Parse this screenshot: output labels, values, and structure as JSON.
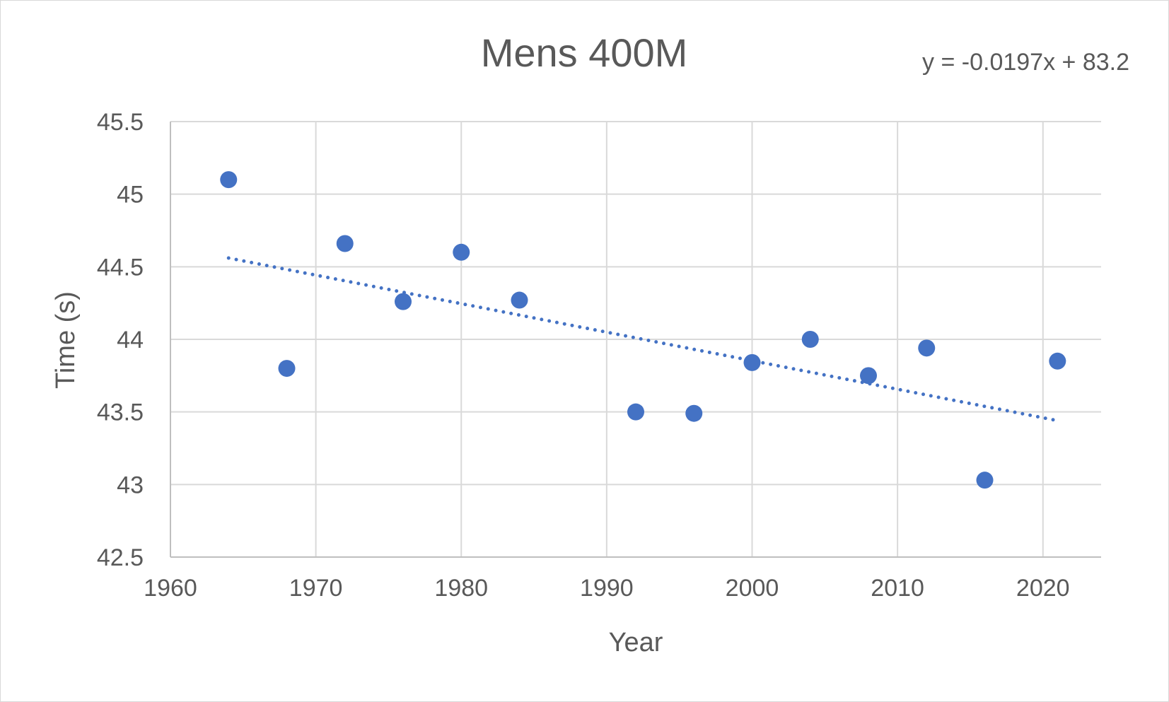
{
  "chart_data": {
    "type": "scatter",
    "title": "Mens 400M",
    "xlabel": "Year",
    "ylabel": "Time (s)",
    "xlim": [
      1960,
      2024
    ],
    "ylim": [
      42.5,
      45.5
    ],
    "x_ticks": [
      1960,
      1970,
      1980,
      1990,
      2000,
      2010,
      2020
    ],
    "y_ticks": [
      42.5,
      43,
      43.5,
      44,
      44.5,
      45,
      45.5
    ],
    "x_tick_labels": [
      "1960",
      "1970",
      "1980",
      "1990",
      "2000",
      "2010",
      "2020"
    ],
    "y_tick_labels": [
      "42.5",
      "43",
      "43.5",
      "44",
      "44.5",
      "45",
      "45.5"
    ],
    "grid": true,
    "legend": "none",
    "series": [
      {
        "x": [
          1964,
          1968,
          1972,
          1976,
          1980,
          1984,
          1992,
          1996,
          2000,
          2004,
          2008,
          2012,
          2016,
          2021
        ],
        "y": [
          45.1,
          43.8,
          44.66,
          44.26,
          44.6,
          44.27,
          43.5,
          43.49,
          43.84,
          44.0,
          43.75,
          43.94,
          43.03,
          43.85
        ],
        "color": "#4472c4"
      }
    ],
    "trendline": {
      "type": "linear",
      "style": "dotted",
      "color": "#4472c4",
      "equation": "y = -0.0197x + 83.2",
      "x_range": [
        1964,
        2021
      ],
      "y_at_range": [
        44.56,
        43.44
      ]
    }
  }
}
